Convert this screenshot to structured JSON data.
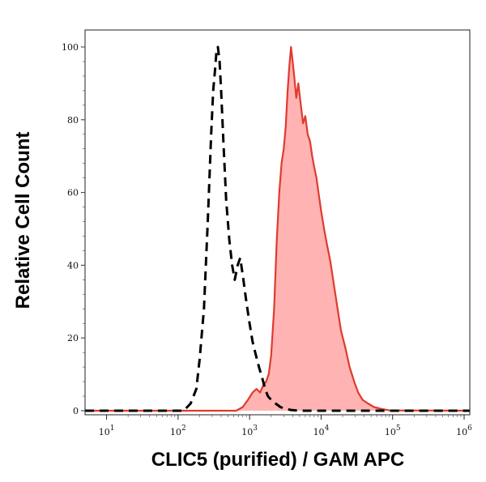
{
  "chart_data": {
    "type": "area",
    "title": "",
    "xlabel": "CLIC5 (purified) / GAM APC",
    "ylabel": "Relative Cell Count",
    "xscale": "log",
    "xlim": [
      5,
      1200000
    ],
    "ylim": [
      0,
      104
    ],
    "x_ticks": [
      {
        "value": 10,
        "base": "10",
        "exp": "1"
      },
      {
        "value": 100,
        "base": "10",
        "exp": "2"
      },
      {
        "value": 1000,
        "base": "10",
        "exp": "3"
      },
      {
        "value": 10000,
        "base": "10",
        "exp": "4"
      },
      {
        "value": 100000,
        "base": "10",
        "exp": "5"
      },
      {
        "value": 1000000,
        "base": "10",
        "exp": "6"
      }
    ],
    "y_ticks": [
      0,
      20,
      40,
      60,
      80,
      100
    ],
    "grid": false,
    "colors": {
      "sample_fill": "#ffb3b3",
      "sample_line": "#e03a2e",
      "control_line": "#000000"
    },
    "series": [
      {
        "style": "dashed-line",
        "x": [
          5,
          120,
          150,
          180,
          200,
          230,
          260,
          290,
          310,
          330,
          345,
          360,
          380,
          400,
          430,
          470,
          520,
          570,
          620,
          680,
          740,
          820,
          900,
          1000,
          1100,
          1200,
          1350,
          1500,
          1650,
          1800,
          2000,
          2300,
          2700,
          3200,
          3800,
          5000,
          1200000
        ],
        "y": [
          0,
          0,
          2,
          6,
          14,
          28,
          52,
          76,
          88,
          94,
          99,
          100,
          96,
          88,
          74,
          58,
          47,
          40,
          36,
          40,
          42,
          36,
          30,
          24,
          19,
          16,
          12,
          9,
          6,
          4,
          3,
          2,
          1,
          0.5,
          0.2,
          0,
          0
        ]
      },
      {
        "style": "filled-area",
        "x": [
          5,
          650,
          800,
          950,
          1100,
          1250,
          1400,
          1550,
          1700,
          1850,
          2000,
          2200,
          2400,
          2600,
          2800,
          3000,
          3200,
          3400,
          3600,
          3800,
          4000,
          4200,
          4500,
          4800,
          5200,
          5600,
          6000,
          6500,
          7000,
          7500,
          8000,
          8600,
          9200,
          10000,
          11000,
          12000,
          13500,
          15000,
          17000,
          19000,
          22000,
          25000,
          29000,
          33000,
          38000,
          45000,
          55000,
          70000,
          90000,
          1200000
        ],
        "y": [
          0,
          0,
          1,
          3,
          5,
          6,
          5,
          7,
          8,
          10,
          15,
          28,
          47,
          60,
          68,
          72,
          78,
          88,
          95,
          100,
          96,
          92,
          86,
          90,
          84,
          79,
          81,
          76,
          74,
          70,
          67,
          64,
          60,
          55,
          50,
          46,
          41,
          35,
          28,
          22,
          17,
          12,
          8,
          5,
          3,
          2,
          1,
          0.5,
          0.1,
          0
        ]
      }
    ]
  }
}
